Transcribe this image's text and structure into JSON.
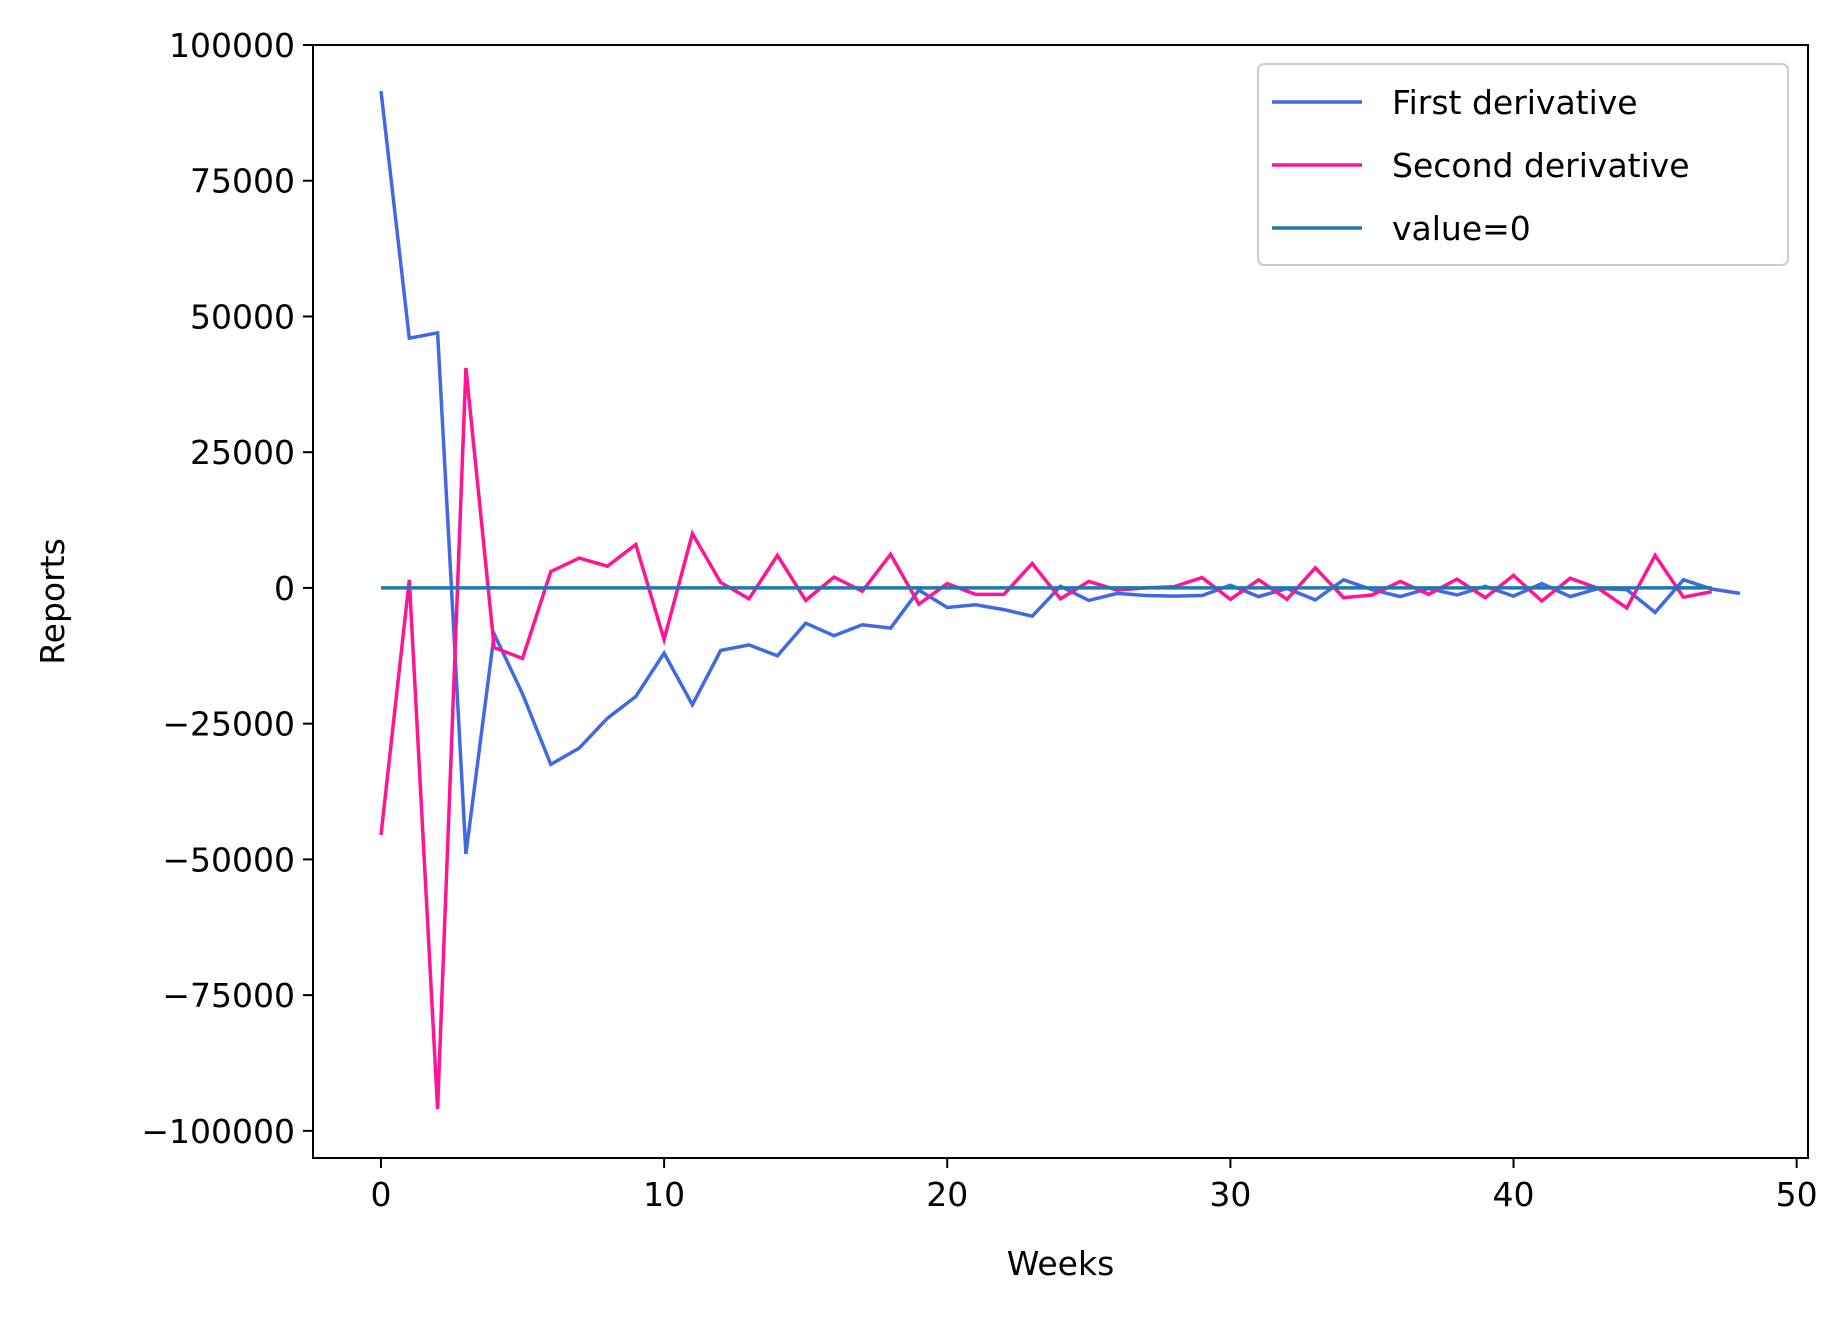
{
  "chart_data": {
    "type": "line",
    "title": "",
    "xlabel": "Weeks",
    "ylabel": "Reports",
    "xlim": [
      -2.4,
      50.4
    ],
    "ylim": [
      -105000,
      100000
    ],
    "x_ticks": [
      0,
      10,
      20,
      30,
      40,
      50
    ],
    "x_tick_labels": [
      "0",
      "10",
      "20",
      "30",
      "40",
      "50"
    ],
    "y_ticks": [
      100000,
      75000,
      50000,
      25000,
      0,
      -25000,
      -50000,
      -75000,
      -100000
    ],
    "y_tick_labels": [
      "100000",
      "75000",
      "50000",
      "25000",
      "0",
      "−25000",
      "−50000",
      "−75000",
      "−100000"
    ],
    "grid": false,
    "legend_position": "top-right",
    "series": [
      {
        "name": "First derivative",
        "color": "#4169e1",
        "x": [
          0,
          1,
          2,
          3,
          4,
          5,
          6,
          7,
          8,
          9,
          10,
          11,
          12,
          13,
          14,
          15,
          16,
          17,
          18,
          19,
          20,
          21,
          22,
          23,
          24,
          25,
          26,
          27,
          28,
          29,
          30,
          31,
          32,
          33,
          34,
          35,
          36,
          37,
          38,
          39,
          40,
          41,
          42,
          43,
          44,
          45,
          46,
          47,
          48
        ],
        "values": [
          91500,
          46000,
          47000,
          -49000,
          -8500,
          -19500,
          -32500,
          -29500,
          -24000,
          -20000,
          -12000,
          -21500,
          -11500,
          -10500,
          -12500,
          -6500,
          -8800,
          -6800,
          -7400,
          -400,
          -3600,
          -3100,
          -4000,
          -5200,
          300,
          -2300,
          -1000,
          -1400,
          -1500,
          -1400,
          500,
          -1600,
          -100,
          -2200,
          1500,
          -300,
          -1600,
          -100,
          -1300,
          300,
          -1500,
          800,
          -1600,
          -100,
          -300,
          -4500,
          1500,
          -200,
          -1000
        ]
      },
      {
        "name": "Second derivative",
        "color": "#ff1493",
        "x": [
          0,
          1,
          2,
          3,
          4,
          5,
          6,
          7,
          8,
          9,
          10,
          11,
          12,
          13,
          14,
          15,
          16,
          17,
          18,
          19,
          20,
          21,
          22,
          23,
          24,
          25,
          26,
          27,
          28,
          29,
          30,
          31,
          32,
          33,
          34,
          35,
          36,
          37,
          38,
          39,
          40,
          41,
          42,
          43,
          44,
          45,
          46,
          47
        ],
        "values": [
          -45500,
          1500,
          -96000,
          40500,
          -11000,
          -13000,
          3000,
          5500,
          4000,
          8000,
          -9500,
          10000,
          1000,
          -2000,
          6000,
          -2300,
          2000,
          -600,
          6200,
          -3000,
          800,
          -1200,
          -1200,
          4500,
          -2000,
          1200,
          -400,
          0,
          200,
          1900,
          -2100,
          1500,
          -2100,
          3700,
          -1800,
          -1300,
          1200,
          -1200,
          1600,
          -1800,
          2300,
          -2400,
          1800,
          -100,
          -3700,
          6000,
          -1700,
          -700
        ]
      },
      {
        "name": "value=0",
        "color": "#1f77b4",
        "x": [
          0,
          47
        ],
        "values": [
          0,
          0
        ]
      }
    ]
  }
}
